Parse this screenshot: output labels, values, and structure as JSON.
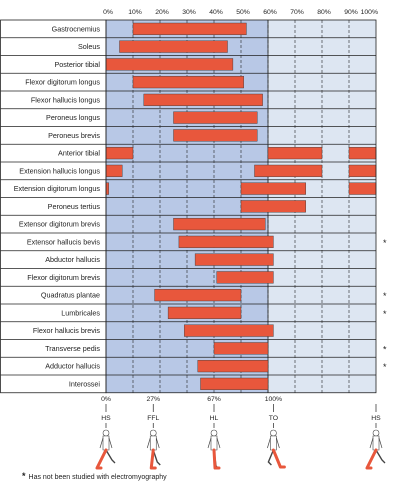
{
  "chart_data": {
    "type": "bar",
    "subtype": "horizontal-range (Gantt-style muscle activity)",
    "title": "",
    "x_axis": {
      "unit": "% of gait cycle",
      "range": [
        0,
        100
      ],
      "tick_labels": [
        "0%",
        "10%",
        "20%",
        "30%",
        "40%",
        "50%",
        "60%",
        "70%",
        "80%",
        "90%",
        "100%"
      ],
      "grid": "dashed vertical lines every 10%"
    },
    "stance_phase": {
      "range": [
        0,
        60
      ],
      "shading": "blue"
    },
    "swing_phase": {
      "range": [
        60,
        100
      ],
      "shading": "light-blue"
    },
    "bar_color": "#e8573c",
    "stance_color": "#b8c8e6",
    "swing_color": "#dde6f2",
    "muscles": [
      {
        "name": "Gastrocnemius",
        "segments": [
          [
            10,
            52
          ]
        ],
        "not_studied_emg": false
      },
      {
        "name": "Soleus",
        "segments": [
          [
            5,
            45
          ]
        ],
        "not_studied_emg": false
      },
      {
        "name": "Posterior tibial",
        "segments": [
          [
            0,
            47
          ]
        ],
        "not_studied_emg": false
      },
      {
        "name": "Flexor digitorum longus",
        "segments": [
          [
            10,
            51
          ]
        ],
        "not_studied_emg": false
      },
      {
        "name": "Flexor hallucis longus",
        "segments": [
          [
            14,
            58
          ]
        ],
        "not_studied_emg": false
      },
      {
        "name": "Peroneus longus",
        "segments": [
          [
            25,
            56
          ]
        ],
        "not_studied_emg": false
      },
      {
        "name": "Peroneus brevis",
        "segments": [
          [
            25,
            56
          ]
        ],
        "not_studied_emg": false
      },
      {
        "name": "Anterior tibial",
        "segments": [
          [
            0,
            10
          ],
          [
            60,
            80
          ],
          [
            90,
            100
          ]
        ],
        "not_studied_emg": false
      },
      {
        "name": "Extension hallucis longus",
        "segments": [
          [
            0,
            6
          ],
          [
            55,
            80
          ],
          [
            90,
            100
          ]
        ],
        "not_studied_emg": false
      },
      {
        "name": "Extension digitorum longus",
        "segments": [
          [
            0,
            1
          ],
          [
            50,
            74
          ],
          [
            90,
            100
          ]
        ],
        "not_studied_emg": false
      },
      {
        "name": "Peroneus tertius",
        "segments": [
          [
            50,
            74
          ]
        ],
        "not_studied_emg": false
      },
      {
        "name": "Extensor digitorum brevis",
        "segments": [
          [
            25,
            59
          ]
        ],
        "not_studied_emg": false
      },
      {
        "name": "Extensor hallucis bevis",
        "segments": [
          [
            27,
            62
          ]
        ],
        "not_studied_emg": true
      },
      {
        "name": "Abductor hallucis",
        "segments": [
          [
            33,
            62
          ]
        ],
        "not_studied_emg": false
      },
      {
        "name": "Flexor digitorum brevis",
        "segments": [
          [
            41,
            62
          ]
        ],
        "not_studied_emg": false
      },
      {
        "name": "Quadratus plantae",
        "segments": [
          [
            18,
            50
          ]
        ],
        "not_studied_emg": true
      },
      {
        "name": "Lumbricales",
        "segments": [
          [
            23,
            50
          ]
        ],
        "not_studied_emg": true
      },
      {
        "name": "Flexor hallucis brevis",
        "segments": [
          [
            29,
            62
          ]
        ],
        "not_studied_emg": false
      },
      {
        "name": "Transverse pedis",
        "segments": [
          [
            40,
            60
          ]
        ],
        "not_studied_emg": true
      },
      {
        "name": "Adductor hallucis",
        "segments": [
          [
            34,
            60
          ]
        ],
        "not_studied_emg": true
      },
      {
        "name": "Interossei",
        "segments": [
          [
            35,
            60
          ]
        ],
        "not_studied_emg": false
      }
    ],
    "gait_events": [
      {
        "percent_label": "0%",
        "value": 0,
        "event": "HS"
      },
      {
        "percent_label": "27%",
        "value": 17.5,
        "event": "FFL"
      },
      {
        "percent_label": "67%",
        "value": 40,
        "event": "HL"
      },
      {
        "percent_label": "100%",
        "value": 62,
        "event": "TO"
      },
      {
        "percent_label": "",
        "value": 100,
        "event": "HS"
      }
    ],
    "star_symbol": "*",
    "footnote": "Has not been studied with electromyography"
  }
}
